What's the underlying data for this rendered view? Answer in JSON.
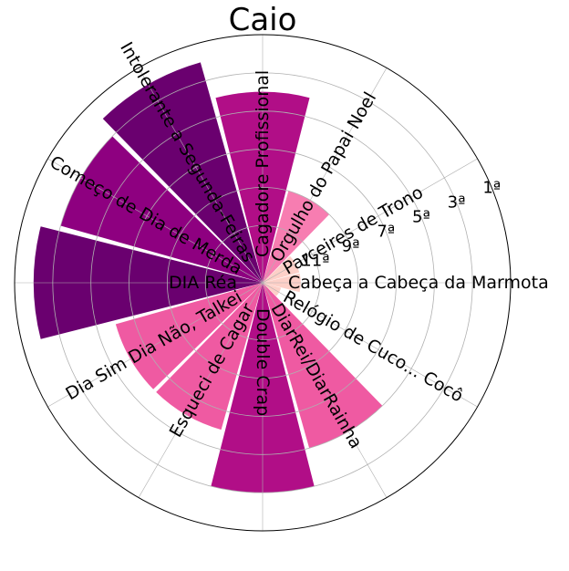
{
  "chart_data": {
    "type": "bar",
    "subtype": "polar",
    "title": "Caio",
    "radial_axis": {
      "reversed": true,
      "min": 1,
      "max": 13,
      "tick_labels": [
        "1ª",
        "3ª",
        "5ª",
        "7ª",
        "9ª",
        "11ª"
      ],
      "tick_values": [
        1,
        3,
        5,
        7,
        9,
        11
      ]
    },
    "grid": true,
    "bars": [
      {
        "label": "Cabeça a Cabeça da Marmota",
        "position": 12,
        "color": "#fdd0c8"
      },
      {
        "label": "Parceires de Trono",
        "position": 12,
        "color": "#fdd0c8"
      },
      {
        "label": "Orgulho do Papai Noel",
        "position": 9,
        "color": "#f77db1"
      },
      {
        "label": "Cagadore Profissional",
        "position": 4,
        "color": "#b10e87"
      },
      {
        "label": "Intolerante a Segunda-Feiras",
        "position": 2,
        "color": "#6a006f"
      },
      {
        "label": "Começo de Dia de Merda",
        "position": 3,
        "color": "#8e0080"
      },
      {
        "label": "DIA Réa",
        "position": 2,
        "color": "#6a006f"
      },
      {
        "label": "Dia Sim Dia Não, Talkei",
        "position": 6,
        "color": "#ef5aa2"
      },
      {
        "label": "Esqueci de Cagar",
        "position": 6,
        "color": "#ef5aa2"
      },
      {
        "label": "Double Crap",
        "position": 3,
        "color": "#b10e87"
      },
      {
        "label": "DiarRei/DiarRainha",
        "position": 5,
        "color": "#ef5aa2"
      },
      {
        "label": "Relógio de Cuco... Cocô",
        "position": 13,
        "color": "#fdd0c8"
      }
    ]
  }
}
